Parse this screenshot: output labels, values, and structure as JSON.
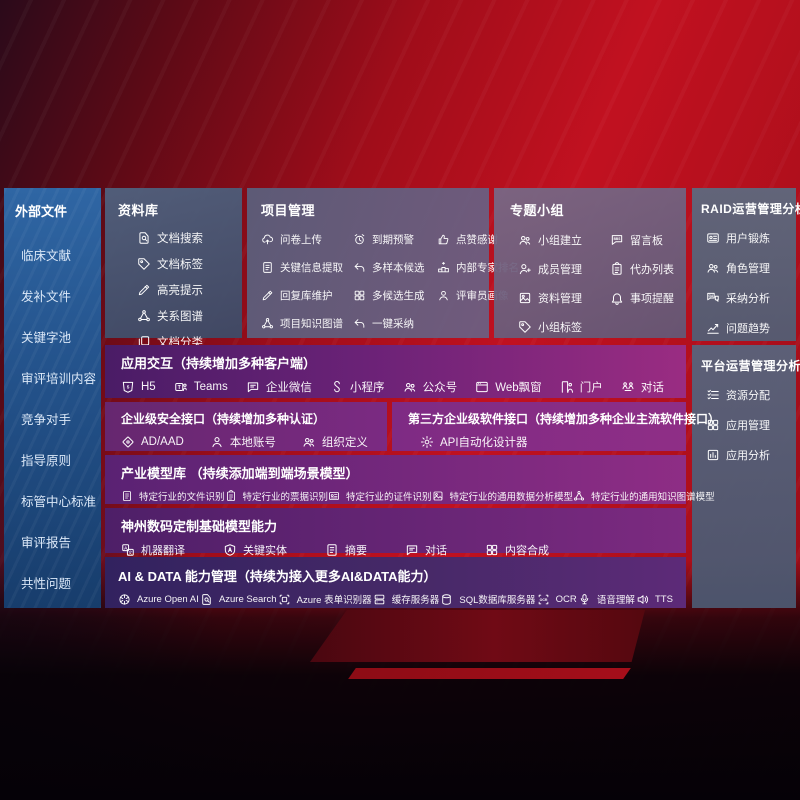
{
  "colors": {
    "background_red": "#b50f1c",
    "sidebar_blue": "#2b5f9e",
    "panel_slate": "#566077",
    "purple_dark": "#4e1d6a",
    "purple_magenta": "#962d80",
    "indigo_dark": "#32225f",
    "text": "#ffffff"
  },
  "sidebar": {
    "title": "外部文件",
    "items": [
      {
        "label": "临床文献"
      },
      {
        "label": "发补文件"
      },
      {
        "label": "关键字池"
      },
      {
        "label": "审评培训内容"
      },
      {
        "label": "竞争对手"
      },
      {
        "label": "指导原则"
      },
      {
        "label": "标管中心标准"
      },
      {
        "label": "审评报告"
      },
      {
        "label": "共性问题"
      }
    ]
  },
  "library": {
    "title": "资料库",
    "items": [
      {
        "icon": "doc-search",
        "label": "文档搜索"
      },
      {
        "icon": "tag",
        "label": "文档标签"
      },
      {
        "icon": "highlighter",
        "label": "高亮提示"
      },
      {
        "icon": "network",
        "label": "关系图谱"
      },
      {
        "icon": "doc-copy",
        "label": "文档分类"
      }
    ]
  },
  "project": {
    "title": "项目管理",
    "items": [
      {
        "icon": "cloud-upload",
        "label": "问卷上传"
      },
      {
        "icon": "alarm",
        "label": "到期预警"
      },
      {
        "icon": "thumbs-up",
        "label": "点赞感谢"
      },
      {
        "icon": "doc-extract",
        "label": "关键信息提取"
      },
      {
        "icon": "reply-arrow",
        "label": "多样本候选"
      },
      {
        "icon": "ranking",
        "label": "内部专家排名"
      },
      {
        "icon": "pencil",
        "label": "回复库维护"
      },
      {
        "icon": "grid-gen",
        "label": "多候选生成"
      },
      {
        "icon": "user",
        "label": "评审员画像"
      },
      {
        "icon": "network",
        "label": "项目知识图谱"
      },
      {
        "icon": "reply-arrow",
        "label": "一键采纳"
      }
    ]
  },
  "groups": {
    "title": "专题小组",
    "items": [
      {
        "icon": "users",
        "label": "小组建立"
      },
      {
        "icon": "bbs",
        "label": "留言板"
      },
      {
        "icon": "user-add",
        "label": "成员管理"
      },
      {
        "icon": "clipboard",
        "label": "代办列表"
      },
      {
        "icon": "archive-image",
        "label": "资料管理"
      },
      {
        "icon": "bell",
        "label": "事项提醒"
      },
      {
        "icon": "tag",
        "label": "小组标签"
      }
    ]
  },
  "raid": {
    "title": "RAID运营管理分析",
    "items": [
      {
        "icon": "id-card",
        "label": "用户锻炼"
      },
      {
        "icon": "users",
        "label": "角色管理"
      },
      {
        "icon": "qa-chat",
        "label": "采纳分析"
      },
      {
        "icon": "trend-chart",
        "label": "问题趋势"
      }
    ]
  },
  "platform": {
    "title": "平台运营管理分析",
    "items": [
      {
        "icon": "list-settings",
        "label": "资源分配"
      },
      {
        "icon": "app-grid",
        "label": "应用管理"
      },
      {
        "icon": "chart-box",
        "label": "应用分析"
      }
    ]
  },
  "interaction": {
    "title": "应用交互（持续增加多种客户端）",
    "items": [
      {
        "icon": "h5",
        "label": "H5"
      },
      {
        "icon": "teams",
        "label": "Teams"
      },
      {
        "icon": "wechat-work",
        "label": "企业微信"
      },
      {
        "icon": "miniprogram",
        "label": "小程序"
      },
      {
        "icon": "official-account",
        "label": "公众号"
      },
      {
        "icon": "browser-window",
        "label": "Web飘窗"
      },
      {
        "icon": "portal-user",
        "label": "门户"
      },
      {
        "icon": "dialog-users",
        "label": "对话"
      }
    ]
  },
  "security": {
    "title": "企业级安全接口（持续增加多种认证）",
    "items": [
      {
        "icon": "shield-diamond",
        "label": "AD/AAD"
      },
      {
        "icon": "user-badge",
        "label": "本地账号"
      },
      {
        "icon": "org-users",
        "label": "组织定义"
      }
    ]
  },
  "thirdparty": {
    "title": "第三方企业级软件接口（持续增加多种企业主流软件接口）",
    "items": [
      {
        "icon": "api-gear",
        "label": "API自动化设计器"
      }
    ]
  },
  "industry": {
    "title": "产业模型库 （持续添加端到端场景模型）",
    "items": [
      {
        "icon": "doc-file",
        "label": "特定行业的文件识别"
      },
      {
        "icon": "receipt",
        "label": "特定行业的票据识别"
      },
      {
        "icon": "cert-card",
        "label": "特定行业的证件识别"
      },
      {
        "icon": "data-image",
        "label": "特定行业的通用数据分析模型"
      },
      {
        "icon": "network",
        "label": "特定行业的通用知识图谱模型"
      }
    ]
  },
  "basemodel": {
    "title": "神州数码定制基础模型能力",
    "items": [
      {
        "icon": "translate",
        "label": "机器翻译"
      },
      {
        "icon": "entity-shield",
        "label": "关键实体"
      },
      {
        "icon": "summary-doc",
        "label": "摘要"
      },
      {
        "icon": "chat-bubble",
        "label": "对话"
      },
      {
        "icon": "compose-grid",
        "label": "内容合成"
      }
    ]
  },
  "aidata": {
    "title": "AI & DATA 能力管理（持续为接入更多AI&DATA能力）",
    "items": [
      {
        "icon": "openai",
        "label": "Azure Open AI"
      },
      {
        "icon": "azure-search",
        "label": "Azure Search"
      },
      {
        "icon": "form-recognizer",
        "label": "Azure 表单识别器"
      },
      {
        "icon": "cache-server",
        "label": "缓存服务器"
      },
      {
        "icon": "sql-db",
        "label": "SQL数据库服务器"
      },
      {
        "icon": "ocr",
        "label": "OCR"
      },
      {
        "icon": "speech",
        "label": "语音理解"
      },
      {
        "icon": "tts",
        "label": "TTS"
      }
    ]
  }
}
